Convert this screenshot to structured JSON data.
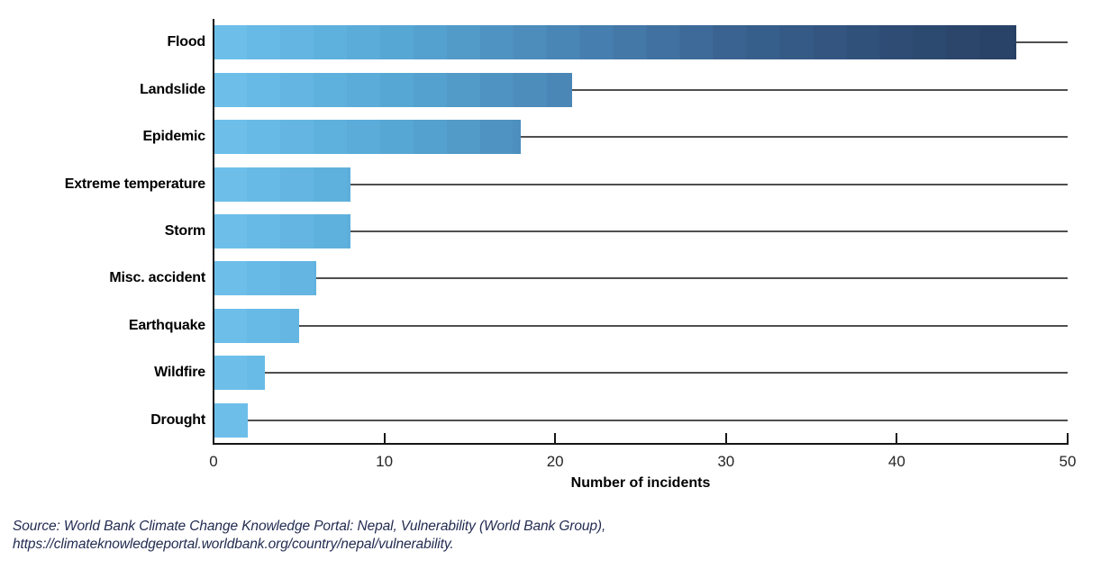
{
  "chart_data": {
    "type": "bar",
    "orientation": "horizontal",
    "categories": [
      "Flood",
      "Landslide",
      "Epidemic",
      "Extreme temperature",
      "Storm",
      "Misc. accident",
      "Earthquake",
      "Wildfire",
      "Drought"
    ],
    "values": [
      47,
      21,
      18,
      8,
      8,
      6,
      5,
      3,
      2
    ],
    "title": "",
    "xlabel": "Number of incidents",
    "ylabel": "",
    "xlim": [
      0,
      50
    ],
    "xticks": [
      0,
      10,
      20,
      30,
      40,
      50
    ],
    "grid": "horizontal category lines behind bars",
    "legend": "none",
    "bar_gradient_stops": [
      {
        "unit": 0,
        "color": "#6FC1EC"
      },
      {
        "unit": 10,
        "color": "#58A9D6"
      },
      {
        "unit": 20,
        "color": "#4A88B8"
      },
      {
        "unit": 30,
        "color": "#3A6492"
      },
      {
        "unit": 40,
        "color": "#2E4C74"
      },
      {
        "unit": 50,
        "color": "#263A5E"
      }
    ]
  },
  "source": {
    "line1": "Source: World Bank Climate Change Knowledge Portal: Nepal, Vulnerability (World Bank Group),",
    "line2": "https://climateknowledgeportal.worldbank.org/country/nepal/vulnerability."
  },
  "colors": {
    "axis": "#161616",
    "gridline": "#4f4f4f",
    "category_label": "#000000",
    "tick_label": "#262626",
    "source_text": "#232c52",
    "background": "#ffffff"
  }
}
